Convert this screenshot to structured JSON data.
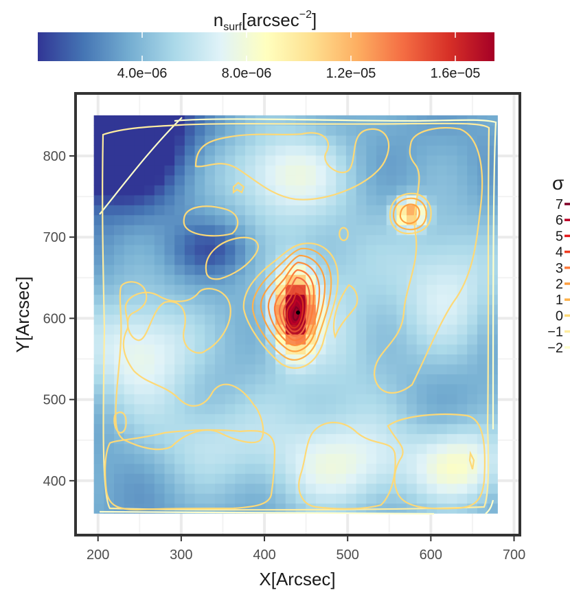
{
  "chart_data": {
    "type": "heatmap",
    "xlabel": "X[Arcsec]",
    "ylabel": "Y[Arcsec]",
    "xlim": [
      173,
      707
    ],
    "ylim": [
      333,
      877
    ],
    "x_ticks": [
      200,
      300,
      400,
      500,
      600,
      700
    ],
    "y_ticks": [
      400,
      500,
      600,
      700,
      800
    ],
    "x_tick_labels": [
      "200",
      "300",
      "400",
      "500",
      "600",
      "700"
    ],
    "y_tick_labels": [
      "400",
      "500",
      "600",
      "700",
      "800"
    ],
    "grid": true,
    "colorbar": {
      "title": "n_surf[arcsec^-2]",
      "title_main": "n",
      "title_sub": "surf",
      "title_rest": "[arcsec",
      "title_sup": "−2",
      "title_close": "]",
      "range": [
        0,
        1.75e-05
      ],
      "ticks": [
        4e-06,
        8e-06,
        1.2e-05,
        1.6e-05
      ],
      "tick_labels": [
        "4.0e−06",
        "8.0e−06",
        "1.2e−05",
        "1.6e−05"
      ],
      "placement": "top",
      "colors": [
        "#313695",
        "#4575b4",
        "#74add1",
        "#abd9e9",
        "#e0f3f8",
        "#ffffbf",
        "#fee090",
        "#fdae61",
        "#f46d43",
        "#d73027",
        "#a50026"
      ]
    },
    "map_extent": {
      "x": [
        195,
        680
      ],
      "y": [
        360,
        850
      ]
    },
    "peak": {
      "x": 437,
      "y": 608,
      "value": 1.6e-05
    },
    "hotspots": [
      {
        "x": 437,
        "y": 608,
        "value": 1.6e-05,
        "sx": 15,
        "sy": 30
      },
      {
        "x": 575,
        "y": 730,
        "value": 8.5e-06,
        "sx": 12,
        "sy": 12
      },
      {
        "x": 470,
        "y": 590,
        "value": 2.5e-06,
        "sx": 60,
        "sy": 120
      },
      {
        "x": 250,
        "y": 560,
        "value": 4.5e-06,
        "sx": 50,
        "sy": 50
      },
      {
        "x": 500,
        "y": 420,
        "value": 3.5e-06,
        "sx": 70,
        "sy": 40
      },
      {
        "x": 640,
        "y": 420,
        "value": 4.5e-06,
        "sx": 40,
        "sy": 35
      },
      {
        "x": 420,
        "y": 780,
        "value": 4e-06,
        "sx": 50,
        "sy": 40
      },
      {
        "x": 620,
        "y": 640,
        "value": 3.5e-06,
        "sx": 45,
        "sy": 60
      },
      {
        "x": 330,
        "y": 450,
        "value": 2.5e-06,
        "sx": 50,
        "sy": 40
      }
    ],
    "coldspots": [
      {
        "x": 215,
        "y": 835,
        "value": -1e-05,
        "sx": 55,
        "sy": 55
      },
      {
        "x": 340,
        "y": 685,
        "value": -2.2e-06,
        "sx": 35,
        "sy": 22
      }
    ],
    "contour_legend": {
      "title": "σ",
      "levels": [
        "7",
        "6",
        "5",
        "4",
        "3",
        "2",
        "1",
        "0",
        "−1",
        "−2"
      ],
      "colors": [
        "#800026",
        "#bd0026",
        "#e31a1c",
        "#f03b20",
        "#fd7b3c",
        "#fd9e3f",
        "#feb24c",
        "#fed976",
        "#ffeda0",
        "#ffffcc"
      ]
    }
  }
}
